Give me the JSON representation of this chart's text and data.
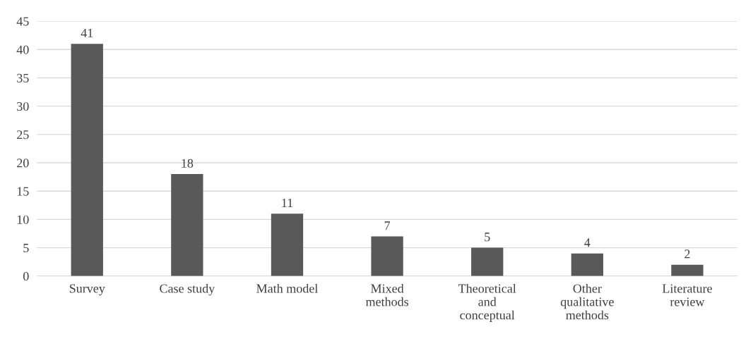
{
  "chart_data": {
    "type": "bar",
    "categories": [
      "Survey",
      "Case study",
      "Math model",
      "Mixed\nmethods",
      "Theoretical\nand\nconceptual",
      "Other\nqualitative\nmethods",
      "Literature\nreview"
    ],
    "values": [
      41,
      18,
      11,
      7,
      5,
      4,
      2
    ],
    "color": "#595959",
    "ylim": [
      0,
      45
    ],
    "yticks": [
      0,
      5,
      10,
      15,
      20,
      25,
      30,
      35,
      40,
      45
    ],
    "grid": "y",
    "data_labels": true,
    "legend": false
  }
}
